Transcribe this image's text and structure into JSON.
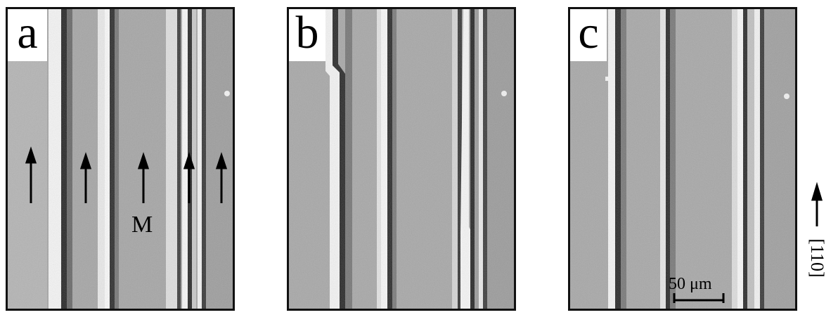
{
  "panels": [
    {
      "id": "a",
      "label": "a"
    },
    {
      "id": "b",
      "label": "b"
    },
    {
      "id": "c",
      "label": "c"
    }
  ],
  "annotations": {
    "marker_label": "M",
    "scale_bar_label": "50 μm",
    "direction_label": "[110]",
    "arrow_count_panel_a": 5
  },
  "colors": {
    "background_gray": "#a9a9a9",
    "bright_band": "#f4f4f4",
    "dark_line": "#2a2a2a",
    "border": "#111111"
  }
}
